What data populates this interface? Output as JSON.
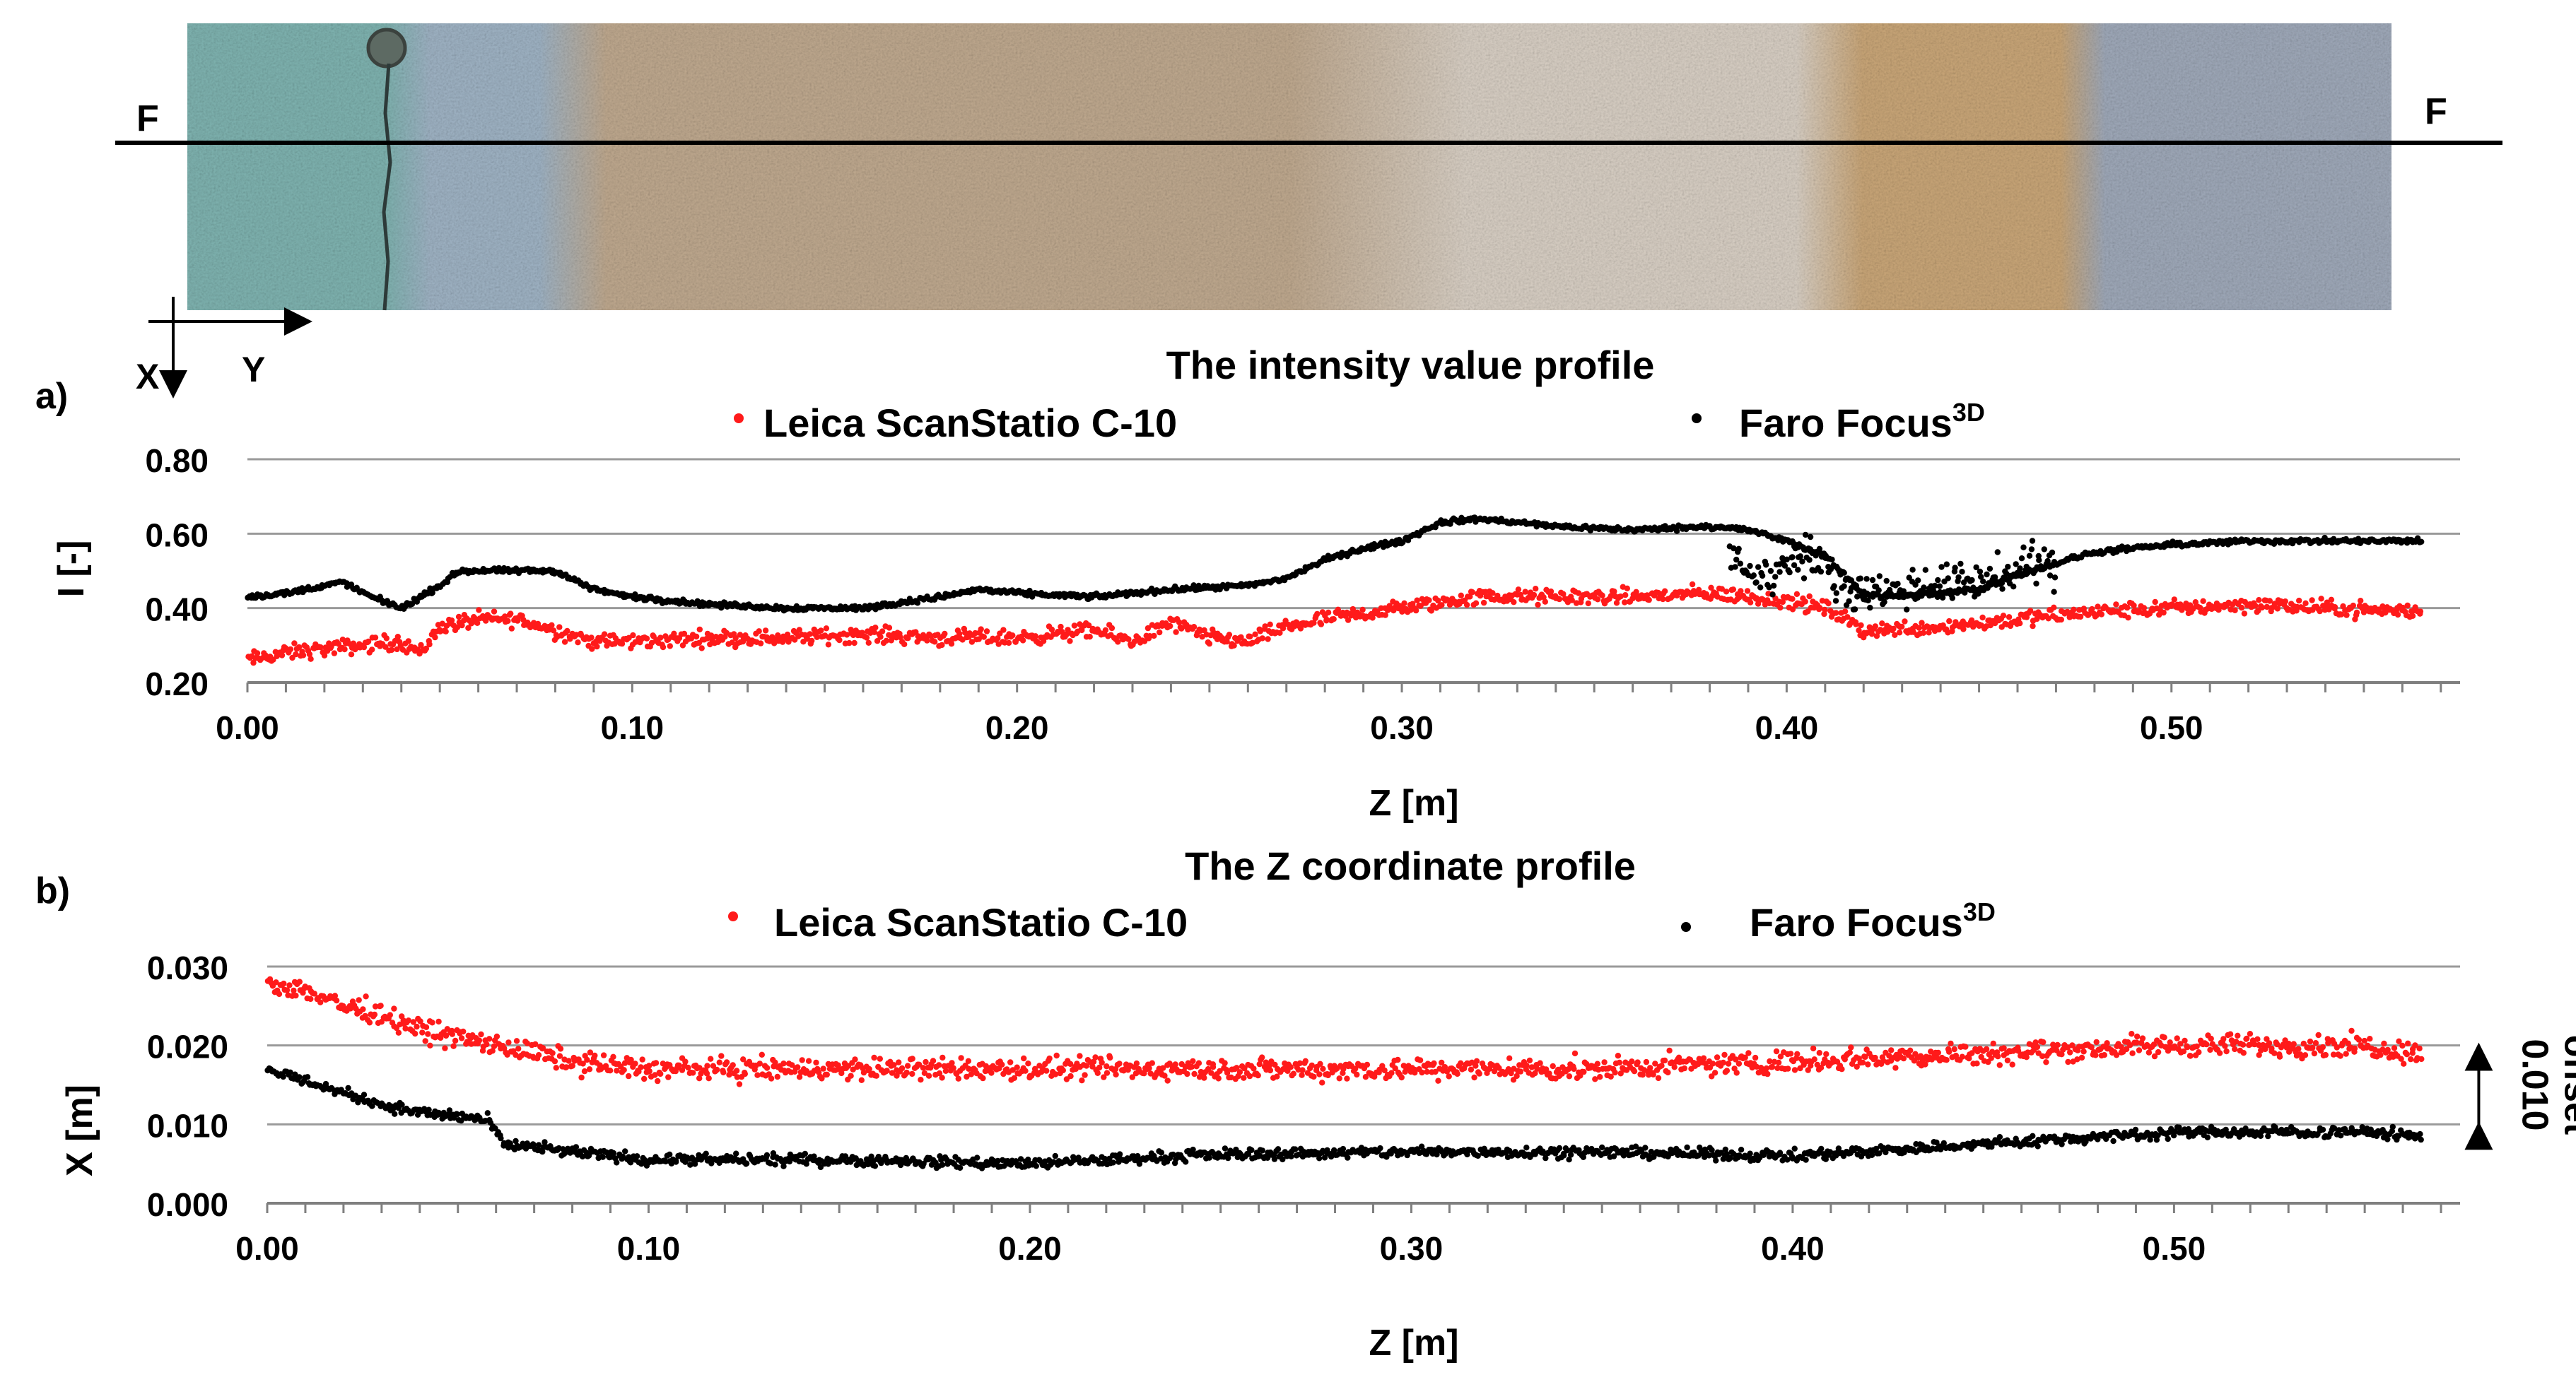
{
  "photo": {
    "section_left": "F",
    "section_right": "F",
    "axis_x": "X",
    "axis_y": "Y",
    "zones": [
      {
        "name": "turquoise paint",
        "color": "#7fb3b0"
      },
      {
        "name": "blue paint",
        "color": "#9fb3c4"
      },
      {
        "name": "bare render",
        "color": "#bfa98f"
      },
      {
        "name": "light render",
        "color": "#d8cfc4"
      },
      {
        "name": "ochre paint",
        "color": "#c9a678"
      },
      {
        "name": "blue-grey paint",
        "color": "#9fa9b9"
      }
    ]
  },
  "colors": {
    "leica": "#ff1a1a",
    "faro": "#000000",
    "grid": "#999999"
  },
  "chart_data": [
    {
      "type": "scatter",
      "panel_label": "a)",
      "title": "The intensity value profile",
      "xlabel": "Z [m]",
      "ylabel": "I [-]",
      "xlim": [
        0,
        0.575
      ],
      "ylim": [
        0.2,
        0.8
      ],
      "xticks": [
        0.0,
        0.1,
        0.2,
        0.3,
        0.4,
        0.5
      ],
      "xtick_labels": [
        "0.00",
        "0.10",
        "0.20",
        "0.30",
        "0.40",
        "0.50"
      ],
      "yticks": [
        0.2,
        0.4,
        0.6,
        0.8
      ],
      "ytick_labels": [
        "0.20",
        "0.40",
        "0.60",
        "0.80"
      ],
      "series": [
        {
          "name": "Leica ScanStatio C-10",
          "legend_main": "Leica ScanStatio C-10",
          "legend_sup": "",
          "color": "#ff1a1a",
          "noise": 0.018,
          "x": [
            0.0,
            0.01,
            0.02,
            0.03,
            0.04,
            0.045,
            0.05,
            0.06,
            0.07,
            0.08,
            0.09,
            0.1,
            0.12,
            0.14,
            0.16,
            0.18,
            0.2,
            0.22,
            0.23,
            0.24,
            0.25,
            0.26,
            0.27,
            0.28,
            0.3,
            0.32,
            0.34,
            0.36,
            0.38,
            0.39,
            0.4,
            0.41,
            0.42,
            0.44,
            0.46,
            0.48,
            0.5,
            0.52,
            0.54,
            0.565
          ],
          "y": [
            0.26,
            0.28,
            0.29,
            0.3,
            0.31,
            0.28,
            0.35,
            0.37,
            0.37,
            0.34,
            0.31,
            0.31,
            0.32,
            0.32,
            0.33,
            0.32,
            0.32,
            0.34,
            0.31,
            0.36,
            0.32,
            0.31,
            0.35,
            0.37,
            0.4,
            0.43,
            0.43,
            0.43,
            0.44,
            0.43,
            0.42,
            0.4,
            0.34,
            0.35,
            0.37,
            0.39,
            0.4,
            0.41,
            0.4,
            0.39
          ]
        },
        {
          "name": "Faro Focus3D",
          "legend_main": "Faro Focus",
          "legend_sup": "3D",
          "color": "#000000",
          "noise": 0.006,
          "x": [
            0.0,
            0.01,
            0.02,
            0.025,
            0.03,
            0.04,
            0.05,
            0.055,
            0.06,
            0.07,
            0.08,
            0.09,
            0.1,
            0.12,
            0.14,
            0.16,
            0.18,
            0.19,
            0.2,
            0.22,
            0.24,
            0.26,
            0.27,
            0.28,
            0.29,
            0.3,
            0.31,
            0.32,
            0.34,
            0.36,
            0.38,
            0.39,
            0.4,
            0.41,
            0.42,
            0.43,
            0.45,
            0.46,
            0.47,
            0.48,
            0.5,
            0.52,
            0.54,
            0.565
          ],
          "y": [
            0.43,
            0.44,
            0.46,
            0.47,
            0.44,
            0.4,
            0.46,
            0.5,
            0.5,
            0.5,
            0.5,
            0.45,
            0.43,
            0.41,
            0.4,
            0.4,
            0.43,
            0.45,
            0.44,
            0.43,
            0.45,
            0.46,
            0.48,
            0.53,
            0.56,
            0.58,
            0.63,
            0.64,
            0.62,
            0.61,
            0.62,
            0.61,
            0.58,
            0.54,
            0.44,
            0.43,
            0.45,
            0.49,
            0.52,
            0.55,
            0.57,
            0.58,
            0.58,
            0.58
          ]
        },
        {
          "name": "Faro Focus3D scatter",
          "legend_main": "",
          "legend_sup": "",
          "color": "#000000",
          "noise": 0.045,
          "x": [
            0.385,
            0.39,
            0.395,
            0.4,
            0.405,
            0.41,
            0.415,
            0.42,
            0.46,
            0.465,
            0.47
          ],
          "y": [
            0.55,
            0.5,
            0.48,
            0.52,
            0.55,
            0.5,
            0.46,
            0.44,
            0.49,
            0.53,
            0.5
          ]
        }
      ]
    },
    {
      "type": "scatter",
      "panel_label": "b)",
      "title": "The Z coordinate profile",
      "xlabel": "Z [m]",
      "ylabel": "X  [m]",
      "xlim": [
        0,
        0.575
      ],
      "ylim": [
        0.0,
        0.03
      ],
      "xticks": [
        0.0,
        0.1,
        0.2,
        0.3,
        0.4,
        0.5
      ],
      "xtick_labels": [
        "0.00",
        "0.10",
        "0.20",
        "0.30",
        "0.40",
        "0.50"
      ],
      "yticks": [
        0.0,
        0.01,
        0.02,
        0.03
      ],
      "ytick_labels": [
        "0.000",
        "0.010",
        "0.020",
        "0.030"
      ],
      "annotation": {
        "text_main": "offset",
        "text_value": "0.010",
        "from": 0.01,
        "to": 0.02,
        "at_x": 0.566
      },
      "series": [
        {
          "name": "Leica ScanStatio C-10",
          "legend_main": "Leica ScanStatio C-10",
          "legend_sup": "",
          "color": "#ff1a1a",
          "noise": 0.0012,
          "x": [
            0.0,
            0.01,
            0.02,
            0.03,
            0.04,
            0.05,
            0.06,
            0.07,
            0.08,
            0.1,
            0.15,
            0.2,
            0.25,
            0.3,
            0.35,
            0.4,
            0.45,
            0.5,
            0.55,
            0.565
          ],
          "y": [
            0.028,
            0.027,
            0.025,
            0.024,
            0.022,
            0.021,
            0.02,
            0.019,
            0.018,
            0.017,
            0.017,
            0.017,
            0.017,
            0.017,
            0.017,
            0.018,
            0.019,
            0.02,
            0.02,
            0.019
          ]
        },
        {
          "name": "Faro Focus3D",
          "legend_main": "Faro Focus",
          "legend_sup": "3D",
          "color": "#000000",
          "noise": 0.0006,
          "x": [
            0.0,
            0.01,
            0.02,
            0.03,
            0.04,
            0.05,
            0.058,
            0.062,
            0.07,
            0.08,
            0.1,
            0.15,
            0.2,
            0.25,
            0.3,
            0.35,
            0.4,
            0.45,
            0.5,
            0.55,
            0.565
          ],
          "y": [
            0.017,
            0.0155,
            0.014,
            0.0125,
            0.0115,
            0.011,
            0.0105,
            0.0075,
            0.007,
            0.0065,
            0.0055,
            0.0055,
            0.005,
            0.0062,
            0.0065,
            0.0065,
            0.006,
            0.0075,
            0.009,
            0.009,
            0.0085
          ]
        }
      ]
    }
  ]
}
